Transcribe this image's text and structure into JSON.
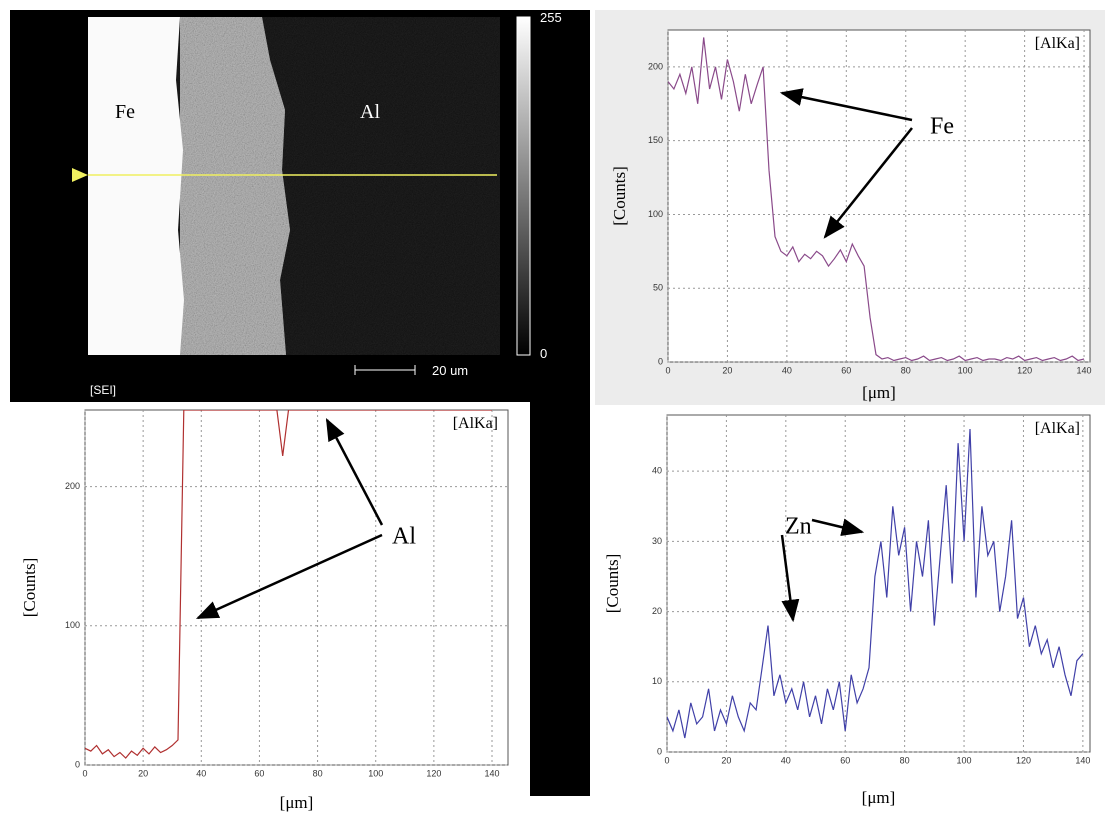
{
  "micrograph": {
    "labels": [
      "Fe",
      "Al"
    ],
    "colorbar_max": 255,
    "colorbar_min": 0,
    "scale": "20 um",
    "mode": "[SEI]"
  },
  "chart_data": [
    {
      "type": "line",
      "annotation": "Fe",
      "xlabel": "[μm]",
      "ylabel": "[Counts]",
      "x": [
        0,
        2,
        4,
        6,
        8,
        10,
        12,
        14,
        16,
        18,
        20,
        22,
        24,
        26,
        28,
        30,
        32,
        34,
        36,
        38,
        40,
        42,
        44,
        46,
        48,
        50,
        52,
        54,
        56,
        58,
        60,
        62,
        64,
        66,
        68,
        70,
        72,
        74,
        76,
        78,
        80,
        82,
        84,
        86,
        88,
        90,
        92,
        94,
        96,
        98,
        100,
        102,
        104,
        106,
        108,
        110,
        112,
        114,
        116,
        118,
        120,
        122,
        124,
        126,
        128,
        130,
        132,
        134,
        136,
        138,
        140
      ],
      "series": [
        {
          "name": "[AlKa]",
          "color": "#8a4a8a",
          "values": [
            190,
            185,
            195,
            182,
            200,
            175,
            220,
            185,
            200,
            178,
            205,
            190,
            170,
            195,
            175,
            188,
            200,
            130,
            85,
            75,
            72,
            78,
            68,
            73,
            70,
            75,
            72,
            65,
            70,
            76,
            68,
            80,
            72,
            65,
            30,
            5,
            2,
            3,
            1,
            2,
            3,
            1,
            2,
            4,
            1,
            2,
            3,
            1,
            2,
            4,
            1,
            2,
            3,
            1,
            2,
            2,
            1,
            3,
            2,
            4,
            1,
            2,
            3,
            1,
            2,
            3,
            1,
            2,
            4,
            1,
            2
          ]
        }
      ],
      "xlim": [
        0,
        142
      ],
      "ylim": [
        0,
        225
      ],
      "xticks": [
        0,
        20,
        40,
        60,
        80,
        100,
        120,
        140
      ],
      "yticks": [
        0,
        50,
        100,
        150,
        200
      ],
      "grid": true
    },
    {
      "type": "line",
      "annotation": "Al",
      "xlabel": "[μm]",
      "ylabel": "[Counts]",
      "x": [
        0,
        2,
        4,
        6,
        8,
        10,
        12,
        14,
        16,
        18,
        20,
        22,
        24,
        26,
        28,
        30,
        32,
        34,
        36,
        38,
        40,
        42,
        44,
        46,
        48,
        50,
        52,
        54,
        56,
        58,
        60,
        62,
        64,
        66,
        68,
        70,
        72,
        74,
        76,
        78,
        80,
        82,
        84,
        86,
        88,
        90,
        92,
        94,
        96,
        98,
        100,
        102,
        104,
        106,
        108,
        110,
        112,
        114,
        116,
        118,
        120,
        122,
        124,
        126,
        128,
        130,
        132,
        134,
        136,
        138,
        140
      ],
      "series": [
        {
          "name": "[AlKa]",
          "color": "#b03030",
          "values": [
            12,
            10,
            14,
            8,
            11,
            6,
            9,
            5,
            10,
            7,
            12,
            8,
            13,
            9,
            11,
            14,
            18,
            255,
            255,
            255,
            255,
            255,
            255,
            255,
            255,
            255,
            255,
            255,
            255,
            255,
            255,
            255,
            255,
            255,
            222,
            255,
            255,
            255,
            255,
            255,
            255,
            255,
            255,
            255,
            255,
            255,
            255,
            255,
            255,
            255,
            255,
            255,
            255,
            255,
            255,
            255,
            255,
            255,
            255,
            255,
            255,
            255,
            255,
            255,
            255,
            255,
            255,
            255,
            255,
            255,
            255
          ]
        }
      ],
      "xlim": [
        0,
        145.5
      ],
      "ylim": [
        0,
        255
      ],
      "xticks": [
        0,
        20,
        40,
        60,
        80,
        100,
        120,
        140
      ],
      "yticks": [
        0,
        100,
        200
      ],
      "grid": true
    },
    {
      "type": "line",
      "annotation": "Zn",
      "xlabel": "[μm]",
      "ylabel": "[Counts]",
      "x": [
        0,
        2,
        4,
        6,
        8,
        10,
        12,
        14,
        16,
        18,
        20,
        22,
        24,
        26,
        28,
        30,
        32,
        34,
        36,
        38,
        40,
        42,
        44,
        46,
        48,
        50,
        52,
        54,
        56,
        58,
        60,
        62,
        64,
        66,
        68,
        70,
        72,
        74,
        76,
        78,
        80,
        82,
        84,
        86,
        88,
        90,
        92,
        94,
        96,
        98,
        100,
        102,
        104,
        106,
        108,
        110,
        112,
        114,
        116,
        118,
        120,
        122,
        124,
        126,
        128,
        130,
        132,
        134,
        136,
        138,
        140
      ],
      "series": [
        {
          "name": "[AlKa]",
          "color": "#4040a8",
          "values": [
            5,
            3,
            6,
            2,
            7,
            4,
            5,
            9,
            3,
            6,
            4,
            8,
            5,
            3,
            7,
            6,
            12,
            18,
            8,
            11,
            7,
            9,
            6,
            10,
            5,
            8,
            4,
            9,
            6,
            10,
            3,
            11,
            7,
            9,
            12,
            25,
            30,
            22,
            35,
            28,
            32,
            20,
            30,
            25,
            33,
            18,
            28,
            38,
            24,
            44,
            30,
            46,
            22,
            35,
            28,
            30,
            20,
            25,
            33,
            19,
            22,
            15,
            18,
            14,
            16,
            12,
            15,
            11,
            8,
            13,
            14
          ]
        }
      ],
      "xlim": [
        0,
        142.4
      ],
      "ylim": [
        0,
        48
      ],
      "xticks": [
        0,
        20,
        40,
        60,
        80,
        100,
        120,
        140
      ],
      "yticks": [
        0,
        10,
        20,
        30,
        40
      ],
      "grid": true
    }
  ]
}
